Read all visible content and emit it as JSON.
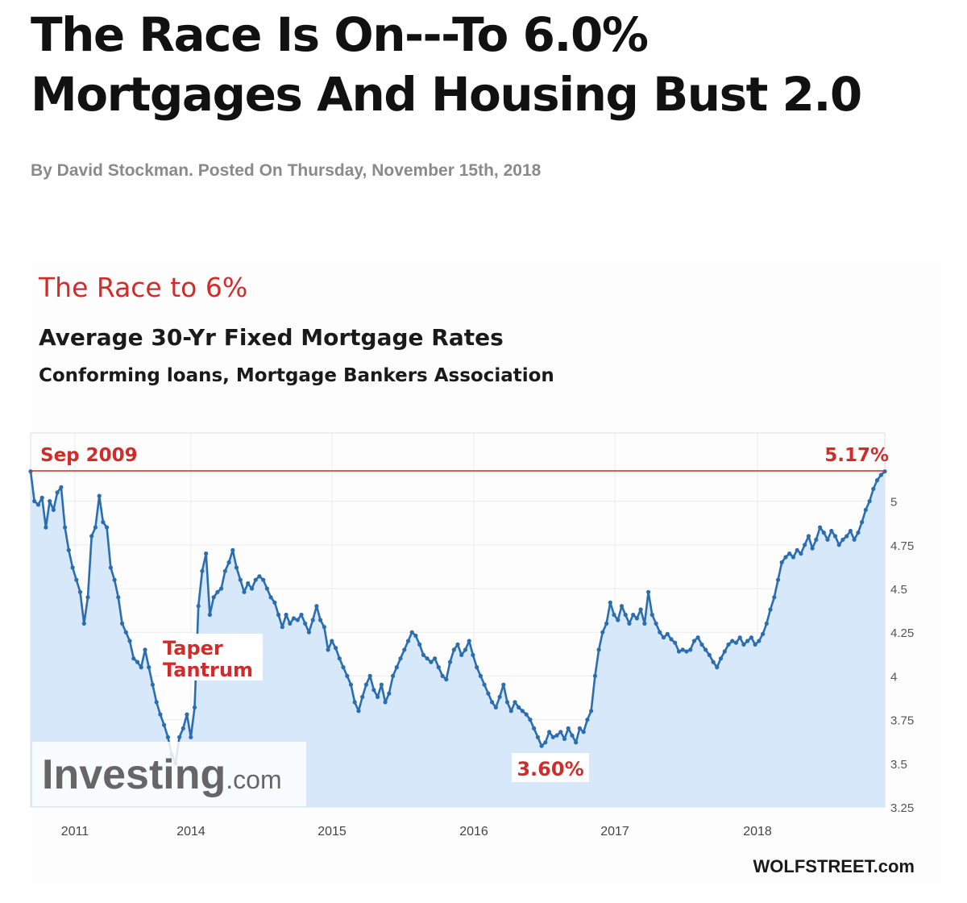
{
  "article": {
    "headline_line1": "The Race Is On---To 6.0%",
    "headline_line2": "Mortgages And Housing Bust 2.0",
    "byline": "By David Stockman. Posted On Thursday, November 15th, 2018"
  },
  "chart_data": {
    "type": "line",
    "header": "The Race to 6%",
    "title": "Average 30-Yr Fixed Mortgage Rates",
    "subtitle": "Conforming loans, Mortgage Bankers Association",
    "xlabel": "",
    "ylabel": "",
    "x_ticks": [
      "2011",
      "2014",
      "2015",
      "2016",
      "2017",
      "2018"
    ],
    "y_ticks": [
      "5",
      "4.75",
      "4.5",
      "4.25",
      "4",
      "3.75",
      "3.5",
      "3.25"
    ],
    "ylim": [
      3.25,
      5.2
    ],
    "grid": true,
    "legend": "none",
    "colors": {
      "line": "#2a6db0",
      "fill": "#d6e8fa",
      "reference": "#d22b2b",
      "annotation": "#d22b2b"
    },
    "series": [
      {
        "values": [
          5.17,
          5.0,
          4.98,
          5.02,
          4.85,
          5.0,
          4.95,
          5.05,
          5.08,
          4.85,
          4.72,
          4.62,
          4.55,
          4.48,
          4.3,
          4.45,
          4.8,
          4.85,
          5.03,
          4.88,
          4.85,
          4.62,
          4.55,
          4.45,
          4.3,
          4.25,
          4.2,
          4.1,
          4.08,
          4.05,
          4.15,
          4.05,
          3.95,
          3.85,
          3.78,
          3.72,
          3.65,
          3.55,
          3.5,
          3.65,
          3.7,
          3.78,
          3.65,
          3.82,
          4.4,
          4.6,
          4.7,
          4.35,
          4.45,
          4.48,
          4.5,
          4.6,
          4.65,
          4.72,
          4.62,
          4.55,
          4.48,
          4.53,
          4.5,
          4.55,
          4.57,
          4.55,
          4.5,
          4.45,
          4.42,
          4.35,
          4.28,
          4.35,
          4.3,
          4.33,
          4.32,
          4.35,
          4.3,
          4.25,
          4.32,
          4.4,
          4.32,
          4.28,
          4.15,
          4.2,
          4.16,
          4.1,
          4.05,
          4.0,
          3.95,
          3.85,
          3.8,
          3.88,
          3.95,
          4.0,
          3.92,
          3.88,
          3.95,
          3.85,
          3.9,
          4.0,
          4.05,
          4.1,
          4.15,
          4.2,
          4.25,
          4.23,
          4.18,
          4.12,
          4.1,
          4.08,
          4.1,
          4.05,
          4.0,
          3.98,
          4.08,
          4.15,
          4.18,
          4.12,
          4.15,
          4.2,
          4.12,
          4.05,
          4.0,
          3.95,
          3.9,
          3.85,
          3.82,
          3.88,
          3.95,
          3.85,
          3.8,
          3.85,
          3.82,
          3.8,
          3.78,
          3.75,
          3.7,
          3.65,
          3.6,
          3.62,
          3.68,
          3.65,
          3.66,
          3.68,
          3.64,
          3.7,
          3.66,
          3.62,
          3.7,
          3.68,
          3.75,
          3.8,
          4.0,
          4.15,
          4.25,
          4.3,
          4.42,
          4.35,
          4.32,
          4.4,
          4.35,
          4.3,
          4.35,
          4.33,
          4.38,
          4.3,
          4.48,
          4.35,
          4.3,
          4.25,
          4.22,
          4.24,
          4.21,
          4.19,
          4.14,
          4.15,
          4.14,
          4.15,
          4.2,
          4.22,
          4.18,
          4.15,
          4.12,
          4.08,
          4.05,
          4.1,
          4.14,
          4.18,
          4.2,
          4.19,
          4.22,
          4.18,
          4.2,
          4.22,
          4.18,
          4.2,
          4.24,
          4.3,
          4.38,
          4.45,
          4.55,
          4.65,
          4.68,
          4.7,
          4.68,
          4.72,
          4.7,
          4.75,
          4.8,
          4.73,
          4.78,
          4.85,
          4.82,
          4.78,
          4.83,
          4.8,
          4.75,
          4.78,
          4.8,
          4.83,
          4.78,
          4.82,
          4.88,
          4.95,
          5.0,
          5.07,
          5.12,
          5.15,
          5.17
        ]
      }
    ],
    "reference_line": {
      "value": 5.17,
      "start_label": "Sep 2009",
      "end_label": "5.17%"
    },
    "annotations": [
      {
        "label_line1": "Taper",
        "label_line2": "Tantrum"
      },
      {
        "label": "3.60%"
      }
    ],
    "source_logo": {
      "main": "Investing",
      "suffix": ".com"
    },
    "credit": "WOLFSTREET.com"
  }
}
